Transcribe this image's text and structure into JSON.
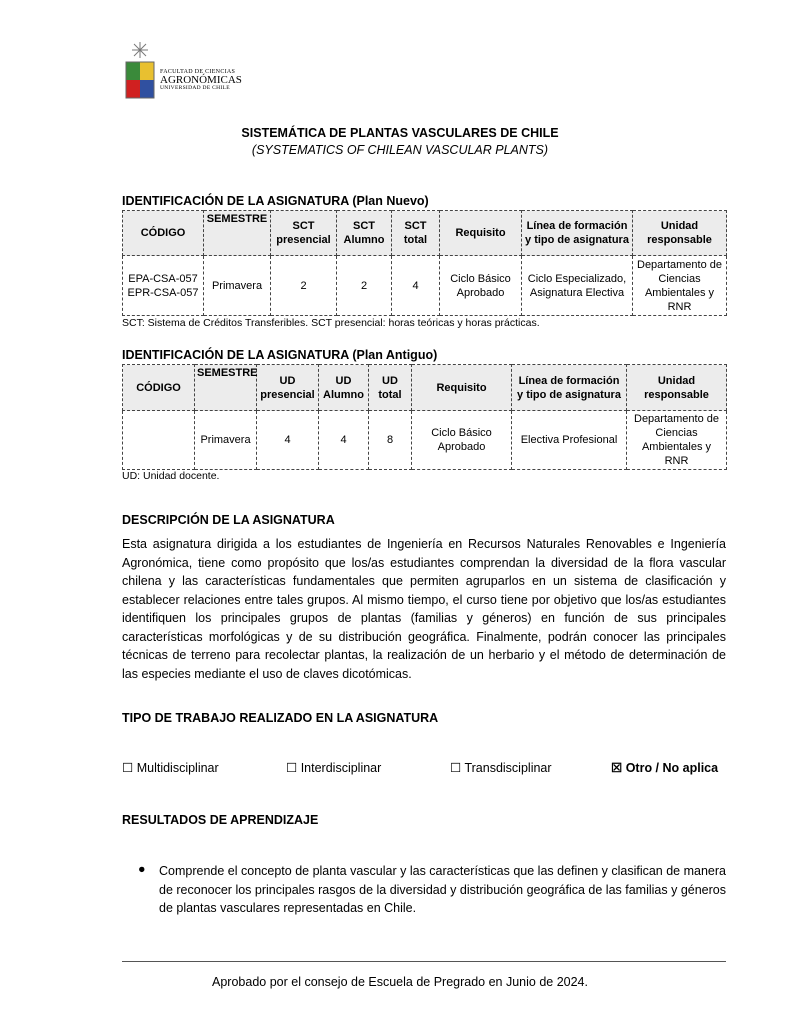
{
  "logo": {
    "line1": "FACULTAD DE CIENCIAS",
    "line2": "AGRONÓMICAS",
    "line3": "UNIVERSIDAD DE CHILE"
  },
  "title": "SISTEMÁTICA DE PLANTAS VASCULARES DE CHILE",
  "subtitle": "(SYSTEMATICS OF CHILEAN VASCULAR PLANTS)",
  "plan_nuevo": {
    "heading": "IDENTIFICACIÓN DE LA ASIGNATURA (Plan Nuevo)",
    "headers": [
      "CÓDIGO",
      "SEMESTRE",
      "SCT presencial",
      "SCT Alumno",
      "SCT total",
      "Requisito",
      "Línea de formación y tipo de asignatura",
      "Unidad responsable"
    ],
    "row": [
      "EPA-CSA-057 EPR-CSA-057",
      "Primavera",
      "2",
      "2",
      "4",
      "Ciclo Básico Aprobado",
      "Ciclo Especializado, Asignatura Electiva",
      "Departamento de Ciencias Ambientales y RNR"
    ],
    "note": "SCT: Sistema de Créditos Transferibles. SCT presencial: horas teóricas y horas prácticas."
  },
  "plan_antiguo": {
    "heading": "IDENTIFICACIÓN DE LA ASIGNATURA (Plan Antiguo)",
    "headers": [
      "CÓDIGO",
      "SEMESTRE",
      "UD presencial",
      "UD Alumno",
      "UD total",
      "Requisito",
      "Línea de formación y tipo de asignatura",
      "Unidad responsable"
    ],
    "row": [
      "",
      "Primavera",
      "4",
      "4",
      "8",
      "Ciclo Básico Aprobado",
      "Electiva Profesional",
      "Departamento de Ciencias Ambientales y RNR"
    ],
    "note": "UD: Unidad docente."
  },
  "descripcion": {
    "heading": "DESCRIPCIÓN DE LA ASIGNATURA",
    "text": "Esta asignatura dirigida a los estudiantes de Ingeniería en Recursos Naturales Renovables e Ingeniería Agronómica, tiene como propósito que los/as estudiantes comprendan la diversidad de la flora vascular chilena y las características fundamentales que permiten agruparlos en un sistema de clasificación y establecer relaciones entre tales grupos. Al mismo tiempo, el curso tiene por objetivo que los/as estudiantes identifiquen los principales grupos de plantas (familias y géneros) en función de sus principales características morfológicas y de su distribución geográfica. Finalmente, podrán conocer las principales técnicas de terreno para recolectar plantas, la realización de un herbario y el método de determinación de las especies mediante el uso de claves dicotómicas."
  },
  "tipo": {
    "heading": "TIPO DE TRABAJO REALIZADO EN LA ASIGNATURA",
    "options": [
      {
        "label": "Multidisciplinar",
        "checked": false
      },
      {
        "label": "Interdisciplinar",
        "checked": false
      },
      {
        "label": "Transdisciplinar",
        "checked": false
      },
      {
        "label": "Otro / No aplica",
        "checked": true
      }
    ]
  },
  "resultados": {
    "heading": "RESULTADOS DE APRENDIZAJE",
    "items": [
      "Comprende el concepto de planta vascular y las características que las definen y clasifican de manera de reconocer los principales rasgos de la diversidad y distribución geográfica de las familias y  géneros de plantas vasculares representadas en Chile."
    ]
  },
  "footer": "Aprobado por el consejo de Escuela de Pregrado en Junio de 2024."
}
